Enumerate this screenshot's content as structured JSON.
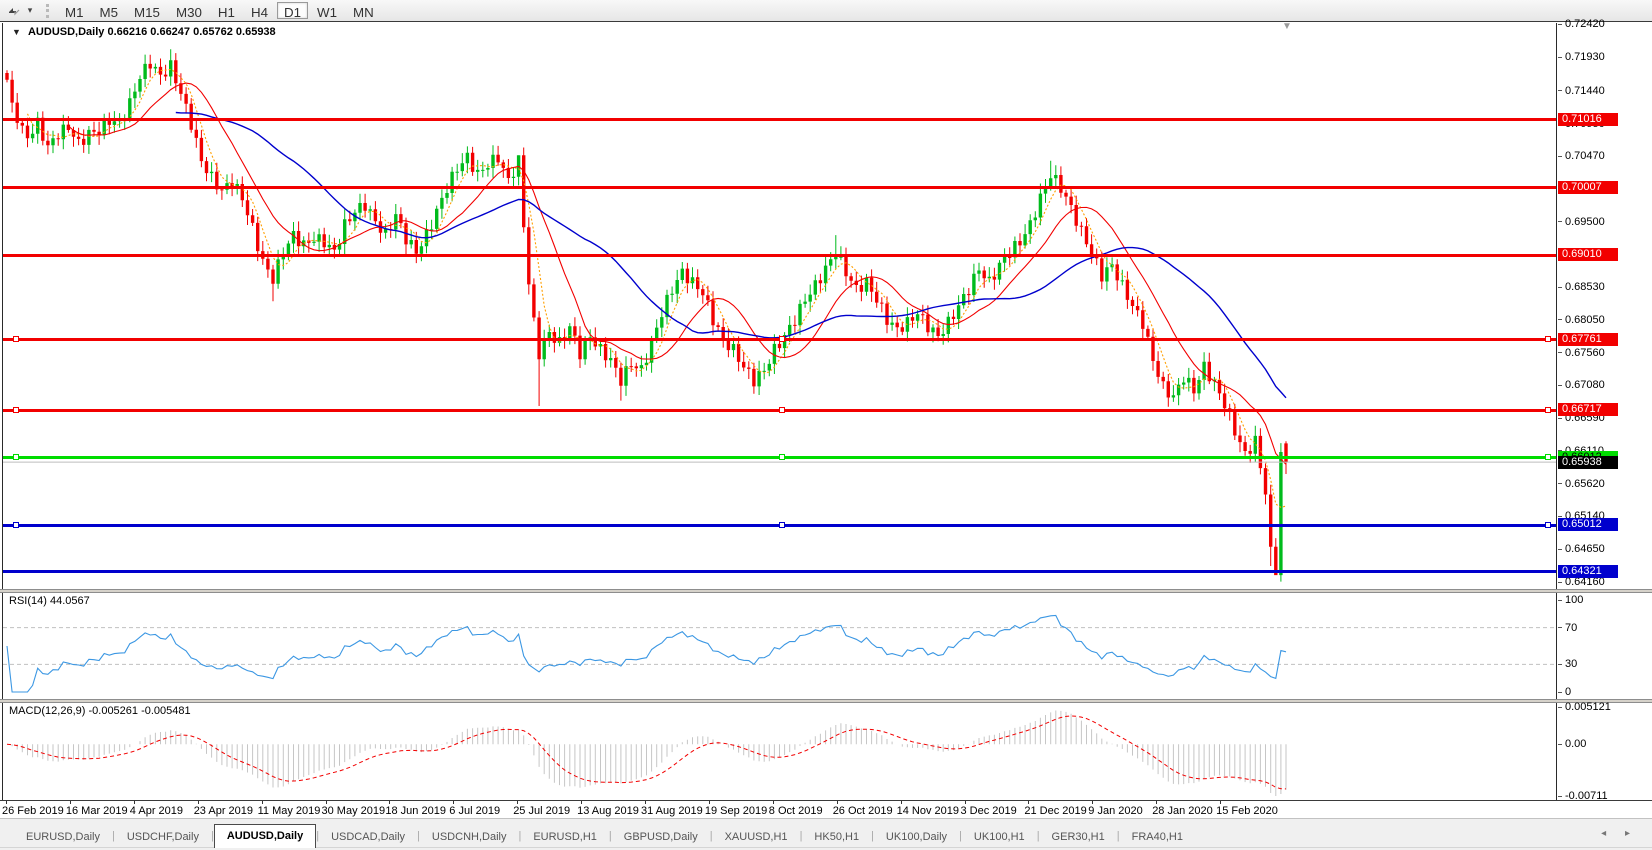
{
  "toolbar": {
    "timeframes": [
      "M1",
      "M5",
      "M15",
      "M30",
      "H1",
      "H4",
      "D1",
      "W1",
      "MN"
    ],
    "active_timeframe": "D1",
    "chart_tool_icon": "chart-arrows-icon",
    "dropdown_caret": "▾"
  },
  "chart": {
    "symbol_title": "AUDUSD,Daily",
    "ohlc_values": "0.66216 0.66247 0.65762 0.65938",
    "collapse_glyph": "▼",
    "shift_marker_glyph": "▼"
  },
  "price_axis": {
    "tick_labels": [
      "0.72420",
      "0.71930",
      "0.71440",
      "0.70950",
      "0.70470",
      "0.69980",
      "0.69500",
      "0.69010",
      "0.68530",
      "0.68050",
      "0.67560",
      "0.67080",
      "0.66590",
      "0.66110",
      "0.65620",
      "0.65140",
      "0.64650",
      "0.64160"
    ],
    "current_price": "0.65938",
    "current_price_bg": "#000000",
    "current_line_color": "#bdbdbd"
  },
  "hlines": [
    {
      "price": "0.71016",
      "value": 0.71016,
      "color": "#f20000",
      "text": "#ffffff",
      "handles": false
    },
    {
      "price": "0.70007",
      "value": 0.70007,
      "color": "#f20000",
      "text": "#ffffff",
      "handles": false
    },
    {
      "price": "0.69010",
      "value": 0.6901,
      "color": "#f20000",
      "text": "#ffffff",
      "handles": false
    },
    {
      "price": "0.67761",
      "value": 0.67761,
      "color": "#f20000",
      "text": "#ffffff",
      "handles": true
    },
    {
      "price": "0.66717",
      "value": 0.66717,
      "color": "#f20000",
      "text": "#ffffff",
      "handles": true
    },
    {
      "price": "0.66012",
      "value": 0.66012,
      "color": "#00dc00",
      "text": "#000000",
      "handles": true
    },
    {
      "price": "0.65012",
      "value": 0.65012,
      "color": "#0000cd",
      "text": "#ffffff",
      "handles": true
    },
    {
      "price": "0.64321",
      "value": 0.64321,
      "color": "#0000cd",
      "text": "#ffffff",
      "handles": false
    }
  ],
  "rsi": {
    "name": "RSI(14)",
    "value": "44.0567",
    "period": 14,
    "axis_labels": [
      "100",
      "70",
      "30",
      "0"
    ],
    "axis_values": [
      100,
      70,
      30,
      0
    ],
    "levels": [
      70,
      30
    ],
    "line_color": "#3b97e3",
    "level_color": "#c0c0c0"
  },
  "macd": {
    "name": "MACD(12,26,9)",
    "value_main": "-0.005261",
    "value_signal": "-0.005481",
    "params": [
      12,
      26,
      9
    ],
    "axis_top": "0.005121",
    "axis_zero": "0.00",
    "axis_bottom": "-0.00711",
    "ylim": [
      -0.00711,
      0.005121
    ],
    "bar_color": "#c6c6c6",
    "signal_color": "#f20000"
  },
  "date_axis": [
    "26 Feb 2019",
    "16 Mar 2019",
    "4 Apr 2019",
    "23 Apr 2019",
    "11 May 2019",
    "30 May 2019",
    "18 Jun 2019",
    "6 Jul 2019",
    "25 Jul 2019",
    "13 Aug 2019",
    "31 Aug 2019",
    "19 Sep 2019",
    "8 Oct 2019",
    "26 Oct 2019",
    "14 Nov 2019",
    "3 Dec 2019",
    "21 Dec 2019",
    "9 Jan 2020",
    "28 Jan 2020",
    "15 Feb 2020"
  ],
  "tabs": {
    "items": [
      "EURUSD,Daily",
      "USDCHF,Daily",
      "AUDUSD,Daily",
      "USDCAD,Daily",
      "USDCNH,Daily",
      "EURUSD,H1",
      "GBPUSD,Daily",
      "XAUUSD,H1",
      "HK50,H1",
      "UK100,Daily",
      "UK100,H1",
      "GER30,H1",
      "FRA40,H1"
    ],
    "active": "AUDUSD,Daily",
    "scroll_left_glyph": "◂",
    "scroll_right_glyph": "▸"
  },
  "chart_data": {
    "type": "candlestick",
    "symbol": "AUDUSD",
    "timeframe": "Daily",
    "title": "AUDUSD,Daily",
    "ylim": [
      0.6406,
      0.7244
    ],
    "candles_total": 251,
    "up_color": "#00bb1c",
    "down_color": "#f20000",
    "close_path": [
      [
        0,
        0.716
      ],
      [
        1,
        0.712
      ],
      [
        2,
        0.7105
      ],
      [
        3,
        0.7085
      ],
      [
        4,
        0.7075
      ],
      [
        6,
        0.7095
      ],
      [
        8,
        0.706
      ],
      [
        10,
        0.708
      ],
      [
        12,
        0.709
      ],
      [
        14,
        0.7065
      ],
      [
        16,
        0.708
      ],
      [
        18,
        0.7085
      ],
      [
        20,
        0.71
      ],
      [
        22,
        0.7095
      ],
      [
        24,
        0.7125
      ],
      [
        26,
        0.7165
      ],
      [
        28,
        0.7185
      ],
      [
        30,
        0.7165
      ],
      [
        32,
        0.718
      ],
      [
        34,
        0.714
      ],
      [
        36,
        0.7095
      ],
      [
        38,
        0.704
      ],
      [
        40,
        0.7015
      ],
      [
        42,
        0.6995
      ],
      [
        44,
        0.701
      ],
      [
        46,
        0.6985
      ],
      [
        48,
        0.694
      ],
      [
        50,
        0.689
      ],
      [
        52,
        0.6865
      ],
      [
        54,
        0.6905
      ],
      [
        56,
        0.693
      ],
      [
        58,
        0.6915
      ],
      [
        60,
        0.6925
      ],
      [
        62,
        0.692
      ],
      [
        64,
        0.6905
      ],
      [
        66,
        0.6945
      ],
      [
        68,
        0.6965
      ],
      [
        70,
        0.6975
      ],
      [
        72,
        0.695
      ],
      [
        74,
        0.693
      ],
      [
        76,
        0.696
      ],
      [
        78,
        0.6925
      ],
      [
        80,
        0.6905
      ],
      [
        82,
        0.693
      ],
      [
        84,
        0.6965
      ],
      [
        86,
        0.7
      ],
      [
        88,
        0.703
      ],
      [
        90,
        0.7045
      ],
      [
        92,
        0.702
      ],
      [
        94,
        0.7035
      ],
      [
        96,
        0.7045
      ],
      [
        98,
        0.701
      ],
      [
        100,
        0.704
      ],
      [
        101,
        0.6945
      ],
      [
        102,
        0.686
      ],
      [
        103,
        0.68
      ],
      [
        104,
        0.6755
      ],
      [
        106,
        0.6785
      ],
      [
        108,
        0.677
      ],
      [
        110,
        0.6795
      ],
      [
        112,
        0.6755
      ],
      [
        114,
        0.678
      ],
      [
        116,
        0.676
      ],
      [
        118,
        0.6745
      ],
      [
        120,
        0.6715
      ],
      [
        122,
        0.674
      ],
      [
        124,
        0.673
      ],
      [
        126,
        0.677
      ],
      [
        128,
        0.6815
      ],
      [
        130,
        0.685
      ],
      [
        132,
        0.6875
      ],
      [
        134,
        0.686
      ],
      [
        136,
        0.6845
      ],
      [
        138,
        0.6805
      ],
      [
        140,
        0.6775
      ],
      [
        142,
        0.676
      ],
      [
        144,
        0.6735
      ],
      [
        146,
        0.6715
      ],
      [
        148,
        0.673
      ],
      [
        150,
        0.676
      ],
      [
        152,
        0.678
      ],
      [
        154,
        0.6805
      ],
      [
        156,
        0.6835
      ],
      [
        158,
        0.6855
      ],
      [
        160,
        0.688
      ],
      [
        162,
        0.6905
      ],
      [
        164,
        0.6875
      ],
      [
        166,
        0.685
      ],
      [
        168,
        0.686
      ],
      [
        170,
        0.6835
      ],
      [
        172,
        0.6805
      ],
      [
        174,
        0.679
      ],
      [
        176,
        0.68
      ],
      [
        178,
        0.6815
      ],
      [
        180,
        0.6795
      ],
      [
        182,
        0.678
      ],
      [
        184,
        0.68
      ],
      [
        186,
        0.6825
      ],
      [
        188,
        0.685
      ],
      [
        190,
        0.688
      ],
      [
        192,
        0.686
      ],
      [
        194,
        0.6885
      ],
      [
        196,
        0.6905
      ],
      [
        198,
        0.692
      ],
      [
        200,
        0.6945
      ],
      [
        202,
        0.6985
      ],
      [
        204,
        0.702
      ],
      [
        206,
        0.7
      ],
      [
        208,
        0.697
      ],
      [
        210,
        0.6935
      ],
      [
        212,
        0.6905
      ],
      [
        214,
        0.687
      ],
      [
        216,
        0.6885
      ],
      [
        218,
        0.6855
      ],
      [
        220,
        0.6825
      ],
      [
        222,
        0.68
      ],
      [
        224,
        0.6745
      ],
      [
        226,
        0.6705
      ],
      [
        228,
        0.669
      ],
      [
        230,
        0.672
      ],
      [
        232,
        0.67
      ],
      [
        234,
        0.6735
      ],
      [
        236,
        0.671
      ],
      [
        238,
        0.668
      ],
      [
        240,
        0.664
      ],
      [
        242,
        0.6605
      ],
      [
        244,
        0.6625
      ],
      [
        246,
        0.655
      ],
      [
        247,
        0.646
      ],
      [
        248,
        0.6435
      ],
      [
        249,
        0.6605
      ],
      [
        250,
        0.65938
      ]
    ],
    "open_overrides": {
      "250": 0.66216
    },
    "high_overrides": {
      "32": 0.7205,
      "100": 0.7048,
      "162": 0.693,
      "204": 0.704,
      "249": 0.6622,
      "250": 0.66247
    },
    "low_overrides": {
      "52": 0.6832,
      "104": 0.6677,
      "120": 0.6685,
      "146": 0.6695,
      "247": 0.644,
      "248": 0.64321,
      "250": 0.65762
    },
    "last_candle": {
      "open": 0.66216,
      "high": 0.66247,
      "low": 0.65762,
      "close": 0.65938
    },
    "moving_averages": [
      {
        "name": "fast",
        "period": 5,
        "color": "#ff9f00",
        "style": "dotted"
      },
      {
        "name": "medium",
        "period": 13,
        "color": "#f20000",
        "style": "solid"
      },
      {
        "name": "slow",
        "period": 34,
        "color": "#0000cd",
        "style": "solid"
      }
    ]
  }
}
